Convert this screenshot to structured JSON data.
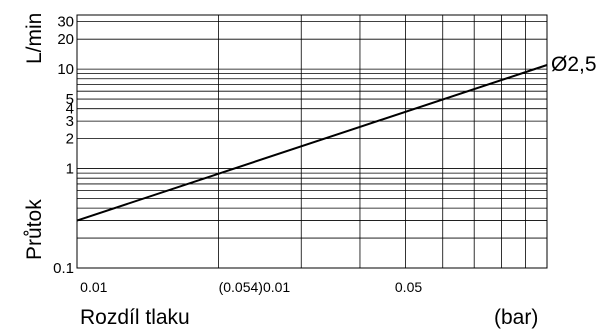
{
  "chart_data": {
    "type": "line",
    "xscale": "log",
    "yscale": "log",
    "xlim": [
      0.01,
      0.1
    ],
    "ylim": [
      0.1,
      35
    ],
    "grid": true,
    "xlabel": "Rozdíl tlaku",
    "xunit": "(bar)",
    "ylabel_top": "L/min",
    "ylabel_bottom": "Průtok",
    "yticks": [
      {
        "value": 0.1,
        "label": "0.1"
      },
      {
        "value": 1,
        "label": "1"
      },
      {
        "value": 2,
        "label": "2"
      },
      {
        "value": 3,
        "label": "3"
      },
      {
        "value": 4,
        "label": "4"
      },
      {
        "value": 5,
        "label": "5"
      },
      {
        "value": 10,
        "label": "10"
      },
      {
        "value": 20,
        "label": "20"
      },
      {
        "value": 30,
        "label": "30"
      }
    ],
    "xtick_labels": [
      {
        "value": 0.0107,
        "label": "0.01"
      },
      {
        "value": 0.0235,
        "label": "(0.054)0.01"
      },
      {
        "value": 0.05,
        "label": "0.05"
      }
    ],
    "series": [
      {
        "name": "Ø2,5",
        "x": [
          0.01,
          0.1
        ],
        "y": [
          0.3,
          11
        ]
      }
    ]
  }
}
